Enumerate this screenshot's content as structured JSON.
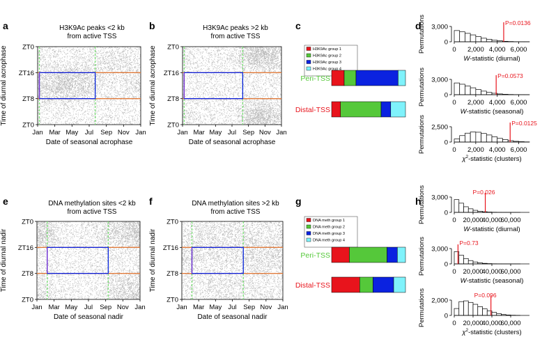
{
  "colors": {
    "red": "#e8141c",
    "green": "#55c83a",
    "blue": "#0b22e0",
    "cyan": "#7ff2fb",
    "orange": "#e07a3a",
    "lgreen": "#7fe07a",
    "purple": "#7a2fd0",
    "pval": "#e8141c"
  },
  "chart_data": [
    {
      "id": "a",
      "panel_label": "a",
      "type": "scatter",
      "title_lines": [
        "H3K9Ac peaks <2 kb",
        "from active TSS"
      ],
      "xlabel": "Date of seasonal acrophase",
      "ylabel": "Time of diurnal acrophase",
      "xticks": [
        "Jan",
        "Mar",
        "May",
        "Jul",
        "Sep",
        "Nov",
        "Jan"
      ],
      "yticks": [
        "ZT0",
        "ZT16",
        "ZT8",
        "ZT0"
      ],
      "ylim": [
        0,
        24
      ],
      "box": {
        "x": [
          0.2,
          6.7
        ],
        "y": [
          16,
          8
        ]
      },
      "lines": {
        "vertical_green": [
          0.2,
          6.7
        ],
        "horizontal_orange": [
          16,
          8
        ]
      },
      "density_modes": [
        [
          2.5,
          12,
          2,
          3,
          0.6
        ],
        [
          5,
          14,
          2.5,
          3.5,
          0.35
        ],
        [
          9,
          20,
          2,
          3,
          0.2
        ]
      ]
    },
    {
      "id": "b",
      "panel_label": "b",
      "type": "scatter",
      "title_lines": [
        "H3K9Ac peaks >2 kb",
        "from active TSS"
      ],
      "xlabel": "Date of seasonal acrophase",
      "ylabel": "Time of diurnal acrophase",
      "xticks": [
        "Jan",
        "Mar",
        "May",
        "Jul",
        "Sep",
        "Nov",
        "Jan"
      ],
      "yticks": [
        "ZT0",
        "ZT16",
        "ZT8",
        "ZT0"
      ],
      "ylim": [
        0,
        24
      ],
      "box": {
        "x": [
          0.2,
          7.3
        ],
        "y": [
          16,
          8
        ]
      },
      "lines": {
        "vertical_green": [
          0.2,
          7.3
        ],
        "horizontal_orange": [
          16,
          8
        ]
      },
      "density_modes": [
        [
          9.5,
          21,
          1.5,
          2.5,
          0.9
        ],
        [
          9.5,
          3,
          1.5,
          2.5,
          0.8
        ],
        [
          4,
          12,
          3,
          5,
          0.15
        ]
      ]
    },
    {
      "id": "c",
      "panel_label": "c",
      "type": "bar",
      "legend": [
        "H3K9Ac group 1",
        "H3K9Ac group 2",
        "H3K9Ac group 3",
        "H3K9Ac group 4"
      ],
      "categories": [
        "Peri-TSS",
        "Distal-TSS"
      ],
      "series": [
        {
          "name": "H3K9Ac group 1",
          "values": [
            17,
            12
          ]
        },
        {
          "name": "H3K9Ac group 2",
          "values": [
            16,
            55
          ]
        },
        {
          "name": "H3K9Ac group 3",
          "values": [
            57,
            13
          ]
        },
        {
          "name": "H3K9Ac group 4",
          "values": [
            10,
            20
          ]
        }
      ]
    },
    {
      "id": "e",
      "panel_label": "e",
      "type": "scatter",
      "title_lines": [
        "DNA methylation sites <2 kb",
        "from active TSS"
      ],
      "xlabel": "Date of seasonal nadir",
      "ylabel": "Time of diurnal nadir",
      "xticks": [
        "Jan",
        "Mar",
        "May",
        "Jul",
        "Sep",
        "Nov",
        "Jan"
      ],
      "yticks": [
        "ZT0",
        "ZT16",
        "ZT8",
        "ZT0"
      ],
      "ylim": [
        0,
        24
      ],
      "box": {
        "x": [
          1.2,
          8.3
        ],
        "y": [
          16,
          8
        ]
      },
      "lines": {
        "vertical_green": [
          1.2,
          8.3
        ],
        "horizontal_orange": [
          16,
          8
        ]
      },
      "density_modes": [
        [
          10.5,
          21,
          1.8,
          3,
          0.7
        ],
        [
          10.5,
          3,
          1.8,
          3,
          0.5
        ],
        [
          5,
          12,
          5,
          8,
          0.25
        ],
        [
          0.5,
          20,
          1,
          3,
          0.35
        ]
      ]
    },
    {
      "id": "f",
      "panel_label": "f",
      "type": "scatter",
      "title_lines": [
        "DNA methylation sites >2 kb",
        "from active TSS"
      ],
      "xlabel": "Date of seasonal nadir",
      "ylabel": "Time of diurnal nadir",
      "xticks": [
        "Jan",
        "Mar",
        "May",
        "Jul",
        "Sep",
        "Nov",
        "Jan"
      ],
      "yticks": [
        "ZT0",
        "ZT16",
        "ZT8",
        "ZT0"
      ],
      "ylim": [
        0,
        24
      ],
      "box": {
        "x": [
          1.2,
          7.3
        ],
        "y": [
          16,
          8
        ]
      },
      "lines": {
        "vertical_green": [
          1.2,
          7.3
        ],
        "horizontal_orange": [
          16,
          8
        ]
      },
      "density_modes": [
        [
          10,
          14,
          2,
          4,
          0.7
        ],
        [
          4,
          15,
          3,
          4,
          0.6
        ],
        [
          6,
          4,
          3,
          3,
          0.4
        ],
        [
          6,
          21,
          3,
          3,
          0.35
        ]
      ]
    },
    {
      "id": "g",
      "panel_label": "g",
      "type": "bar",
      "legend": [
        "DNA meth group 1",
        "DNA meth group 2",
        "DNA meth group 3",
        "DNA meth group 4"
      ],
      "categories": [
        "Peri-TSS",
        "Distal-TSS"
      ],
      "series": [
        {
          "name": "DNA meth group 1",
          "values": [
            24,
            38
          ]
        },
        {
          "name": "DNA meth group 2",
          "values": [
            51,
            18
          ]
        },
        {
          "name": "DNA meth group 3",
          "values": [
            14,
            28
          ]
        },
        {
          "name": "DNA meth group 4",
          "values": [
            11,
            16
          ]
        }
      ]
    },
    {
      "id": "d1",
      "panel_label": "d",
      "type": "bar",
      "ylabel": "Permutations",
      "xlabel": "W-statistic (diurnal)",
      "xlabel_parts": [
        "W",
        "-statistic (diurnal)"
      ],
      "xlim": [
        0,
        7000
      ],
      "ymax": 3000,
      "yticks": [
        "0",
        "3,000"
      ],
      "xticks": [
        "0",
        "2,000",
        "4,000",
        "6,000"
      ],
      "bin_start": 0,
      "bin_width": 500,
      "counts": [
        2200,
        1950,
        1650,
        1350,
        1000,
        700,
        500,
        300,
        180,
        90,
        50,
        20,
        10,
        5
      ],
      "pval_text": "P=0.0136",
      "pval": 0.0136,
      "observed": 4600
    },
    {
      "id": "d2",
      "ylabel": "Permutations",
      "type": "bar",
      "xlabel": "W-statistic (seasonal)",
      "xlabel_parts": [
        "W",
        "-statistic (seasonal)"
      ],
      "xlim": [
        0,
        7000
      ],
      "ymax": 3000,
      "yticks": [
        "0",
        "3,000"
      ],
      "xticks": [
        "0",
        "2,000",
        "4,000",
        "6,000"
      ],
      "bin_start": 0,
      "bin_width": 500,
      "counts": [
        2300,
        2050,
        1700,
        1350,
        1000,
        700,
        450,
        280,
        150,
        80,
        40,
        15,
        8,
        3
      ],
      "pval_text": "P=0.0573",
      "pval": 0.0573,
      "observed": 3900
    },
    {
      "id": "d3",
      "ylabel": "Permutations",
      "type": "bar",
      "xlabel": "χ2-statistic (clusters)",
      "xlabel_parts": [
        "χ",
        "2",
        "-statistic (clusters)"
      ],
      "xlim": [
        0,
        7000
      ],
      "ymax": 2500,
      "yticks": [
        "0",
        "2,500"
      ],
      "xticks": [
        "0",
        "2,000",
        "4,000",
        "6,000"
      ],
      "bin_start": 0,
      "bin_width": 500,
      "counts": [
        500,
        1050,
        1450,
        1650,
        1600,
        1400,
        1150,
        850,
        600,
        400,
        230,
        120,
        60,
        25
      ],
      "pval_text": "P=0.0125",
      "pval": 0.0125,
      "observed": 5200
    },
    {
      "id": "h1",
      "panel_label": "h",
      "ylabel": "Permutations",
      "type": "bar",
      "xlabel": "W-statistic (diurnal)",
      "xlabel_parts": [
        "W",
        "-statistic (diurnal)"
      ],
      "xlim": [
        0,
        80000
      ],
      "ymax": 3000,
      "yticks": [
        "0",
        "3,000"
      ],
      "xticks": [
        "0",
        "20,000",
        "40,000",
        "60,000"
      ],
      "bin_start": 0,
      "bin_width": 5000,
      "counts": [
        2500,
        1800,
        1100,
        700,
        400,
        220,
        120,
        60,
        30,
        15,
        8,
        4,
        2,
        1
      ],
      "pval_text": "P=0.026",
      "pval": 0.026,
      "observed": 33000
    },
    {
      "id": "h2",
      "ylabel": "Permutations",
      "type": "bar",
      "xlabel": "W-statistic (seasonal)",
      "xlabel_parts": [
        "W",
        "-statistic (seasonal)"
      ],
      "xlim": [
        0,
        80000
      ],
      "ymax": 3000,
      "yticks": [
        "0",
        "3,000"
      ],
      "xticks": [
        "0",
        "20,000",
        "40,000",
        "60,000"
      ],
      "bin_start": 0,
      "bin_width": 5000,
      "counts": [
        2400,
        1700,
        1050,
        650,
        380,
        210,
        110,
        55,
        25,
        12,
        6,
        3,
        1,
        1
      ],
      "pval_text": "P=0.73",
      "pval": 0.73,
      "observed": 4000
    },
    {
      "id": "h3",
      "ylabel": "Permutations",
      "type": "bar",
      "xlabel": "χ2-statistic (clusters)",
      "xlabel_parts": [
        "χ",
        "2",
        "-statistic (clusters)"
      ],
      "xlim": [
        0,
        80000
      ],
      "ymax": 2000,
      "yticks": [
        "0",
        "2,000"
      ],
      "xticks": [
        "0",
        "20,000",
        "40,000",
        "60,000"
      ],
      "bin_start": 0,
      "bin_width": 5000,
      "counts": [
        900,
        1800,
        1900,
        1700,
        1450,
        1150,
        850,
        600,
        400,
        230,
        120,
        55,
        25,
        10
      ],
      "pval_text": "P=0.096",
      "pval": 0.096,
      "observed": 39000
    }
  ]
}
